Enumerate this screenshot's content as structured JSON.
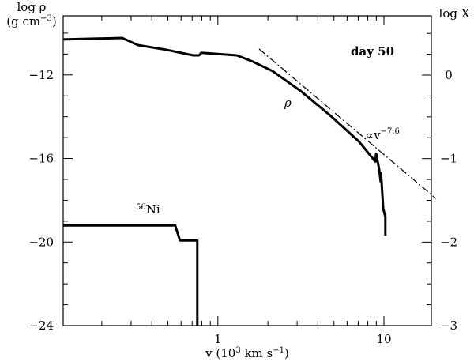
{
  "chart_data": {
    "type": "line",
    "xlabel": {
      "text": "v (10",
      "sup": "3",
      "rest": " km s",
      "sup2": "−1",
      "end": ")"
    },
    "ylabel": {
      "line1": "log ρ",
      "line2": "(g cm",
      "sup": "−3",
      "end": ")"
    },
    "y2label": "log X",
    "xlog": true,
    "xlim": [
      0.117,
      19.3
    ],
    "xticks": [
      1,
      10
    ],
    "xminorticks": [
      0.2,
      0.3,
      0.4,
      0.5,
      0.6,
      0.7,
      0.8,
      0.9,
      2,
      3,
      4,
      5,
      6,
      7,
      8,
      9
    ],
    "ylim": [
      -24,
      -9.17
    ],
    "yticks": [
      {
        "value": -24,
        "label": "−24"
      },
      {
        "value": -20,
        "label": "−20"
      },
      {
        "value": -16,
        "label": "−16"
      },
      {
        "value": -12,
        "label": "−12"
      }
    ],
    "yminorticks": [
      -23,
      -22,
      -21,
      -19,
      -18,
      -17,
      -15,
      -14,
      -13,
      -11,
      -10
    ],
    "y2lim": [
      -3,
      0.71
    ],
    "y2ticks": [
      {
        "value": -3,
        "label": "−3"
      },
      {
        "value": -2,
        "label": "−2"
      },
      {
        "value": -1,
        "label": "−1"
      },
      0
    ],
    "y2minorticks": [
      -2.75,
      -2.5,
      -2.25,
      -1.75,
      -1.5,
      -1.25,
      -0.75,
      -0.5,
      -0.25,
      0.25,
      0.5
    ],
    "series": [
      {
        "color": "#000000",
        "x": [
          0.117,
          0.265,
          0.33,
          0.485,
          0.71,
          0.77,
          0.795,
          1.3,
          1.62,
          2.13,
          3.13,
          4.85,
          7.1,
          8.88,
          8.97,
          9.35,
          9.55,
          9.6,
          9.9,
          10.2,
          10.2
        ],
        "values": [
          -10.3,
          -10.23,
          -10.57,
          -10.79,
          -11.06,
          -11.06,
          -10.94,
          -11.06,
          -11.36,
          -11.81,
          -12.75,
          -14.0,
          -15.2,
          -16.15,
          -15.77,
          -16.5,
          -17.1,
          -16.7,
          -18.4,
          -18.8,
          -19.7
        ]
      },
      {
        "color": "#000000",
        "axis": "y2",
        "x": [
          0.117,
          0.553,
          0.591,
          0.752,
          0.752
        ],
        "values": [
          -1.8,
          -1.8,
          -1.98,
          -1.98,
          -3
        ]
      },
      {
        "color": "#000000",
        "dash": true,
        "x": [
          1.77,
          20.6
        ],
        "values": [
          -10.75,
          -17.92
        ]
      }
    ],
    "annotations": {
      "day": "day 50",
      "rho": "ρ",
      "slope": {
        "text": "∝v",
        "sup": "−7.6"
      },
      "ni": {
        "sup": "56",
        "text": "Ni"
      }
    }
  }
}
